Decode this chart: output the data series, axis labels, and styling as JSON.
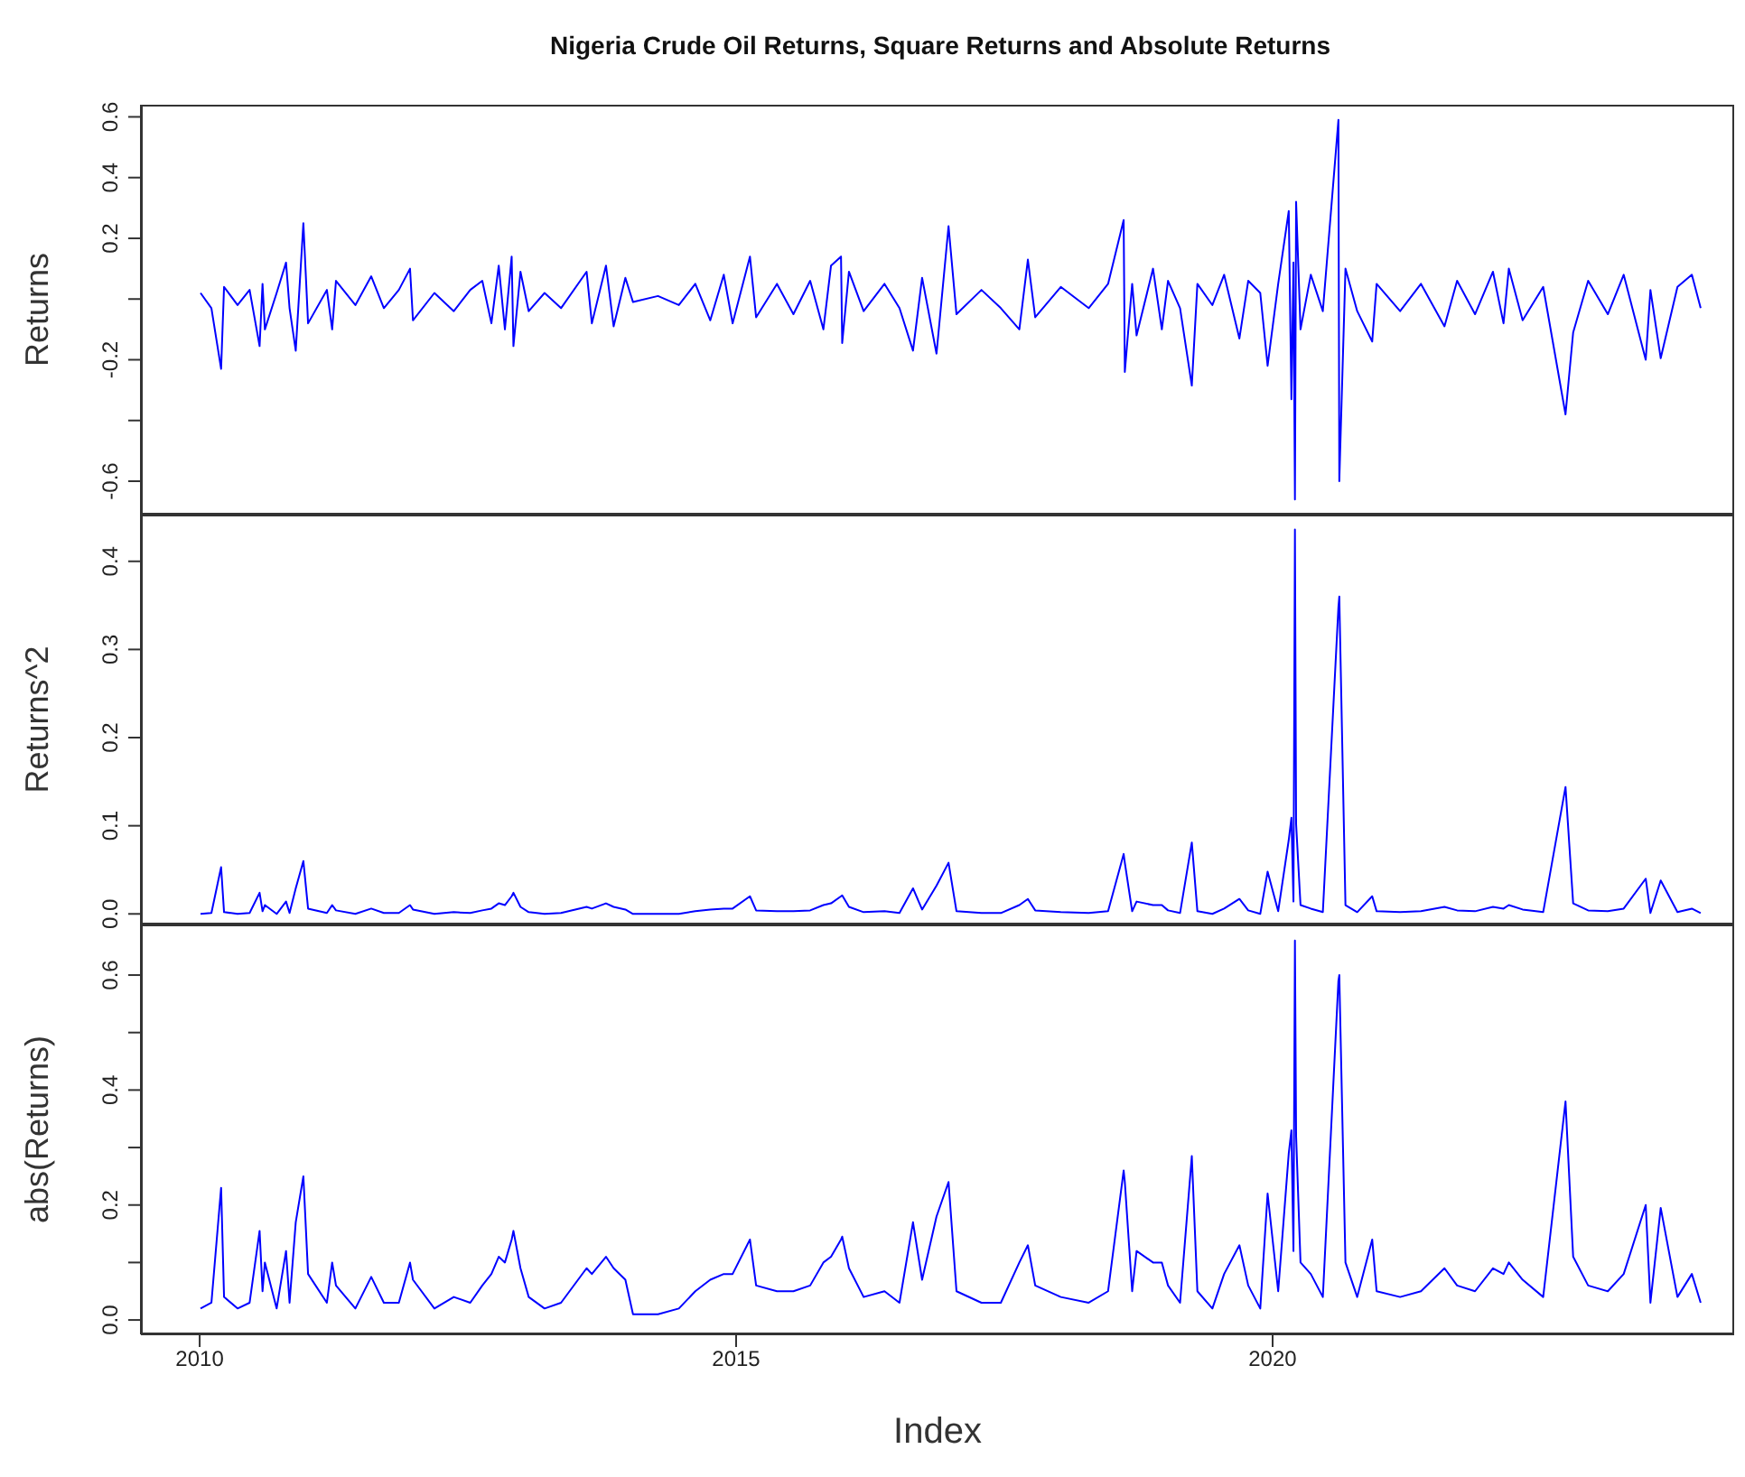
{
  "chart_data": [
    {
      "type": "line",
      "title": "Nigeria Crude Oil Returns, Square Returns and Absolute Returns",
      "ylabel": "Returns",
      "color": "#0000ff",
      "tick_labels": "y",
      "xlim": [
        "2009-06-15",
        "2024-04-20"
      ],
      "ylim": [
        -0.71,
        0.64
      ],
      "yticks": [
        -0.6,
        {
          "value": -0.4,
          "label": null
        },
        -0.2,
        {
          "value": 0,
          "label": null
        },
        0.2,
        0.4,
        0.6
      ],
      "x": [
        "2010-01-04",
        "2010-02-10",
        "2010-03-15",
        "2010-03-25",
        "2010-05-10",
        "2010-06-20",
        "2010-07-24",
        "2010-08-03",
        "2010-08-11",
        "2010-09-20",
        "2010-10-22",
        "2010-11-03",
        "2010-11-24",
        "2010-12-20",
        "2011-01-05",
        "2011-03-10",
        "2011-03-28",
        "2011-04-10",
        "2011-06-15",
        "2011-08-08",
        "2011-09-20",
        "2011-11-10",
        "2011-12-18",
        "2011-12-28",
        "2012-03-10",
        "2012-05-15",
        "2012-07-10",
        "2012-08-20",
        "2012-09-20",
        "2012-10-15",
        "2012-11-05",
        "2012-11-28",
        "2012-12-04",
        "2012-12-28",
        "2013-01-25",
        "2013-03-20",
        "2013-05-15",
        "2013-08-10",
        "2013-08-28",
        "2013-10-15",
        "2013-11-10",
        "2013-12-20",
        "2014-01-15",
        "2014-04-10",
        "2014-06-20",
        "2014-08-15",
        "2014-10-05",
        "2014-11-20",
        "2014-12-20",
        "2015-02-17",
        "2015-03-10",
        "2015-05-20",
        "2015-07-15",
        "2015-09-10",
        "2015-10-25",
        "2015-11-20",
        "2015-12-24",
        "2015-12-28",
        "2016-01-20",
        "2016-03-10",
        "2016-05-20",
        "2016-07-10",
        "2016-08-25",
        "2016-09-25",
        "2016-11-13",
        "2016-12-24",
        "2017-01-20",
        "2017-04-15",
        "2017-06-20",
        "2017-08-22",
        "2017-09-20",
        "2017-10-15",
        "2018-01-10",
        "2018-04-15",
        "2018-06-20",
        "2018-08-12",
        "2018-08-16",
        "2018-09-10",
        "2018-09-25",
        "2018-11-20",
        "2018-12-20",
        "2019-01-10",
        "2019-02-20",
        "2019-04-01",
        "2019-04-20",
        "2019-06-10",
        "2019-07-20",
        "2019-09-10",
        "2019-10-10",
        "2019-11-20",
        "2019-12-15",
        "2020-01-20",
        "2020-02-25",
        "2020-03-05",
        "2020-03-12",
        "2020-03-17",
        "2020-03-21",
        "2020-04-05",
        "2020-05-10",
        "2020-06-20",
        "2020-08-12",
        "2020-08-15",
        "2020-09-05",
        "2020-10-15",
        "2020-12-05",
        "2020-12-20",
        "2021-03-10",
        "2021-05-20",
        "2021-08-08",
        "2021-09-20",
        "2021-11-20",
        "2022-01-20",
        "2022-02-25",
        "2022-03-15",
        "2022-05-01",
        "2022-07-10",
        "2022-09-24",
        "2022-10-20",
        "2022-12-10",
        "2023-02-15",
        "2023-04-10",
        "2023-06-24",
        "2023-07-10",
        "2023-08-14",
        "2023-10-10",
        "2023-11-28",
        "2023-12-28"
      ],
      "values": [
        0.02,
        -0.03,
        -0.23,
        0.04,
        -0.02,
        0.03,
        -0.155,
        0.05,
        -0.1,
        0.02,
        0.12,
        -0.03,
        -0.17,
        0.25,
        -0.08,
        0.03,
        -0.1,
        0.06,
        -0.02,
        0.075,
        -0.03,
        0.03,
        0.1,
        -0.07,
        0.02,
        -0.04,
        0.03,
        0.06,
        -0.08,
        0.11,
        -0.1,
        0.14,
        -0.155,
        0.09,
        -0.04,
        0.02,
        -0.03,
        0.09,
        -0.08,
        0.11,
        -0.09,
        0.07,
        -0.01,
        0.01,
        -0.02,
        0.05,
        -0.07,
        0.08,
        -0.08,
        0.14,
        -0.06,
        0.05,
        -0.05,
        0.06,
        -0.1,
        0.11,
        0.14,
        -0.145,
        0.09,
        -0.04,
        0.05,
        -0.03,
        -0.17,
        0.07,
        -0.18,
        0.24,
        -0.05,
        0.03,
        -0.03,
        -0.1,
        0.13,
        -0.06,
        0.04,
        -0.03,
        0.05,
        0.26,
        -0.24,
        0.05,
        -0.12,
        0.1,
        -0.1,
        0.06,
        -0.03,
        -0.285,
        0.05,
        -0.02,
        0.08,
        -0.13,
        0.06,
        0.02,
        -0.22,
        0.05,
        0.29,
        -0.33,
        0.12,
        -0.66,
        0.32,
        -0.1,
        0.08,
        -0.04,
        0.59,
        -0.6,
        0.1,
        -0.04,
        -0.14,
        0.05,
        -0.04,
        0.05,
        -0.09,
        0.06,
        -0.05,
        0.09,
        -0.08,
        0.1,
        -0.07,
        0.04,
        -0.38,
        -0.11,
        0.06,
        -0.05,
        0.08,
        -0.2,
        0.03,
        -0.195,
        0.04,
        0.08,
        -0.03
      ]
    },
    {
      "type": "line",
      "ylabel": "Returns^2",
      "color": "#0000ff",
      "tick_labels": "y",
      "xlim": [
        "2009-06-15",
        "2024-04-20"
      ],
      "ylim": [
        -0.012,
        0.453
      ],
      "yticks": [
        {
          "value": 0,
          "label": "0.0"
        },
        0.1,
        0.2,
        0.3,
        0.4
      ],
      "x": [
        "2010-01-04",
        "2010-02-10",
        "2010-03-15",
        "2010-03-25",
        "2010-05-10",
        "2010-06-20",
        "2010-07-24",
        "2010-08-03",
        "2010-08-11",
        "2010-09-20",
        "2010-10-22",
        "2010-11-03",
        "2010-11-24",
        "2010-12-20",
        "2011-01-05",
        "2011-03-10",
        "2011-03-28",
        "2011-04-10",
        "2011-06-15",
        "2011-08-08",
        "2011-09-20",
        "2011-11-10",
        "2011-12-18",
        "2011-12-28",
        "2012-03-10",
        "2012-05-15",
        "2012-07-10",
        "2012-08-20",
        "2012-09-20",
        "2012-10-15",
        "2012-11-05",
        "2012-11-28",
        "2012-12-04",
        "2012-12-28",
        "2013-01-25",
        "2013-03-20",
        "2013-05-15",
        "2013-08-10",
        "2013-08-28",
        "2013-10-15",
        "2013-11-10",
        "2013-12-20",
        "2014-01-15",
        "2014-04-10",
        "2014-06-20",
        "2014-08-15",
        "2014-10-05",
        "2014-11-20",
        "2014-12-20",
        "2015-02-17",
        "2015-03-10",
        "2015-05-20",
        "2015-07-15",
        "2015-09-10",
        "2015-10-25",
        "2015-11-20",
        "2015-12-24",
        "2015-12-28",
        "2016-01-20",
        "2016-03-10",
        "2016-05-20",
        "2016-07-10",
        "2016-08-25",
        "2016-09-25",
        "2016-11-13",
        "2016-12-24",
        "2017-01-20",
        "2017-04-15",
        "2017-06-20",
        "2017-08-22",
        "2017-09-20",
        "2017-10-15",
        "2018-01-10",
        "2018-04-15",
        "2018-06-20",
        "2018-08-12",
        "2018-08-16",
        "2018-09-10",
        "2018-09-25",
        "2018-11-20",
        "2018-12-20",
        "2019-01-10",
        "2019-02-20",
        "2019-04-01",
        "2019-04-20",
        "2019-06-10",
        "2019-07-20",
        "2019-09-10",
        "2019-10-10",
        "2019-11-20",
        "2019-12-15",
        "2020-01-20",
        "2020-02-25",
        "2020-03-05",
        "2020-03-12",
        "2020-03-17",
        "2020-03-21",
        "2020-04-05",
        "2020-05-10",
        "2020-06-20",
        "2020-08-12",
        "2020-08-15",
        "2020-09-05",
        "2020-10-15",
        "2020-12-05",
        "2020-12-20",
        "2021-03-10",
        "2021-05-20",
        "2021-08-08",
        "2021-09-20",
        "2021-11-20",
        "2022-01-20",
        "2022-02-25",
        "2022-03-15",
        "2022-05-01",
        "2022-07-10",
        "2022-09-24",
        "2022-10-20",
        "2022-12-10",
        "2023-02-15",
        "2023-04-10",
        "2023-06-24",
        "2023-07-10",
        "2023-08-14",
        "2023-10-10",
        "2023-11-28",
        "2023-12-28"
      ],
      "values": [
        0,
        0.001,
        0.053,
        0.002,
        0,
        0.001,
        0.024,
        0.003,
        0.01,
        0,
        0.014,
        0.001,
        0.029,
        0.06,
        0.006,
        0.001,
        0.01,
        0.004,
        0,
        0.006,
        0.001,
        0.001,
        0.01,
        0.005,
        0,
        0.002,
        0.001,
        0.004,
        0.006,
        0.012,
        0.01,
        0.02,
        0.024,
        0.008,
        0.002,
        0,
        0.001,
        0.008,
        0.006,
        0.012,
        0.008,
        0.005,
        0,
        0,
        0,
        0.003,
        0.005,
        0.006,
        0.006,
        0.02,
        0.004,
        0.003,
        0.003,
        0.004,
        0.01,
        0.012,
        0.02,
        0.021,
        0.008,
        0.002,
        0.003,
        0.001,
        0.029,
        0.005,
        0.032,
        0.058,
        0.003,
        0.001,
        0.001,
        0.01,
        0.017,
        0.004,
        0.002,
        0.001,
        0.003,
        0.068,
        0.058,
        0.003,
        0.014,
        0.01,
        0.01,
        0.004,
        0.001,
        0.081,
        0.003,
        0,
        0.006,
        0.017,
        0.004,
        0,
        0.048,
        0.003,
        0.084,
        0.109,
        0.014,
        0.436,
        0.102,
        0.01,
        0.006,
        0.002,
        0.348,
        0.36,
        0.01,
        0.002,
        0.02,
        0.003,
        0.002,
        0.003,
        0.008,
        0.004,
        0.003,
        0.008,
        0.006,
        0.01,
        0.005,
        0.002,
        0.144,
        0.012,
        0.004,
        0.003,
        0.006,
        0.04,
        0.001,
        0.038,
        0.002,
        0.006,
        0.001
      ]
    },
    {
      "type": "line",
      "ylabel": "abs(Returns)",
      "xlabel": "Index",
      "color": "#0000ff",
      "xlim": [
        "2009-06-15",
        "2024-04-20"
      ],
      "ylim": [
        -0.025,
        0.688
      ],
      "xticks": [
        "2010",
        "2015",
        "2020"
      ],
      "yticks": [
        {
          "value": 0,
          "label": "0.0"
        },
        {
          "value": 0.1,
          "label": null
        },
        0.2,
        {
          "value": 0.3,
          "label": null
        },
        0.4,
        {
          "value": 0.5,
          "label": null
        },
        0.6
      ],
      "x": [
        "2010-01-04",
        "2010-02-10",
        "2010-03-15",
        "2010-03-25",
        "2010-05-10",
        "2010-06-20",
        "2010-07-24",
        "2010-08-03",
        "2010-08-11",
        "2010-09-20",
        "2010-10-22",
        "2010-11-03",
        "2010-11-24",
        "2010-12-20",
        "2011-01-05",
        "2011-03-10",
        "2011-03-28",
        "2011-04-10",
        "2011-06-15",
        "2011-08-08",
        "2011-09-20",
        "2011-11-10",
        "2011-12-18",
        "2011-12-28",
        "2012-03-10",
        "2012-05-15",
        "2012-07-10",
        "2012-08-20",
        "2012-09-20",
        "2012-10-15",
        "2012-11-05",
        "2012-11-28",
        "2012-12-04",
        "2012-12-28",
        "2013-01-25",
        "2013-03-20",
        "2013-05-15",
        "2013-08-10",
        "2013-08-28",
        "2013-10-15",
        "2013-11-10",
        "2013-12-20",
        "2014-01-15",
        "2014-04-10",
        "2014-06-20",
        "2014-08-15",
        "2014-10-05",
        "2014-11-20",
        "2014-12-20",
        "2015-02-17",
        "2015-03-10",
        "2015-05-20",
        "2015-07-15",
        "2015-09-10",
        "2015-10-25",
        "2015-11-20",
        "2015-12-24",
        "2015-12-28",
        "2016-01-20",
        "2016-03-10",
        "2016-05-20",
        "2016-07-10",
        "2016-08-25",
        "2016-09-25",
        "2016-11-13",
        "2016-12-24",
        "2017-01-20",
        "2017-04-15",
        "2017-06-20",
        "2017-08-22",
        "2017-09-20",
        "2017-10-15",
        "2018-01-10",
        "2018-04-15",
        "2018-06-20",
        "2018-08-12",
        "2018-08-16",
        "2018-09-10",
        "2018-09-25",
        "2018-11-20",
        "2018-12-20",
        "2019-01-10",
        "2019-02-20",
        "2019-04-01",
        "2019-04-20",
        "2019-06-10",
        "2019-07-20",
        "2019-09-10",
        "2019-10-10",
        "2019-11-20",
        "2019-12-15",
        "2020-01-20",
        "2020-02-25",
        "2020-03-05",
        "2020-03-12",
        "2020-03-17",
        "2020-03-21",
        "2020-04-05",
        "2020-05-10",
        "2020-06-20",
        "2020-08-12",
        "2020-08-15",
        "2020-09-05",
        "2020-10-15",
        "2020-12-05",
        "2020-12-20",
        "2021-03-10",
        "2021-05-20",
        "2021-08-08",
        "2021-09-20",
        "2021-11-20",
        "2022-01-20",
        "2022-02-25",
        "2022-03-15",
        "2022-05-01",
        "2022-07-10",
        "2022-09-24",
        "2022-10-20",
        "2022-12-10",
        "2023-02-15",
        "2023-04-10",
        "2023-06-24",
        "2023-07-10",
        "2023-08-14",
        "2023-10-10",
        "2023-11-28",
        "2023-12-28"
      ],
      "values": [
        0.02,
        0.03,
        0.23,
        0.04,
        0.02,
        0.03,
        0.155,
        0.05,
        0.1,
        0.02,
        0.12,
        0.03,
        0.17,
        0.25,
        0.08,
        0.03,
        0.1,
        0.06,
        0.02,
        0.075,
        0.03,
        0.03,
        0.1,
        0.07,
        0.02,
        0.04,
        0.03,
        0.06,
        0.08,
        0.11,
        0.1,
        0.14,
        0.155,
        0.09,
        0.04,
        0.02,
        0.03,
        0.09,
        0.08,
        0.11,
        0.09,
        0.07,
        0.01,
        0.01,
        0.02,
        0.05,
        0.07,
        0.08,
        0.08,
        0.14,
        0.06,
        0.05,
        0.05,
        0.06,
        0.1,
        0.11,
        0.14,
        0.145,
        0.09,
        0.04,
        0.05,
        0.03,
        0.17,
        0.07,
        0.18,
        0.24,
        0.05,
        0.03,
        0.03,
        0.1,
        0.13,
        0.06,
        0.04,
        0.03,
        0.05,
        0.26,
        0.24,
        0.05,
        0.12,
        0.1,
        0.1,
        0.06,
        0.03,
        0.285,
        0.05,
        0.02,
        0.08,
        0.13,
        0.06,
        0.02,
        0.22,
        0.05,
        0.29,
        0.33,
        0.12,
        0.66,
        0.32,
        0.1,
        0.08,
        0.04,
        0.59,
        0.6,
        0.1,
        0.04,
        0.14,
        0.05,
        0.04,
        0.05,
        0.09,
        0.06,
        0.05,
        0.09,
        0.08,
        0.1,
        0.07,
        0.04,
        0.38,
        0.11,
        0.06,
        0.05,
        0.08,
        0.2,
        0.03,
        0.195,
        0.04,
        0.08,
        0.03
      ]
    }
  ]
}
